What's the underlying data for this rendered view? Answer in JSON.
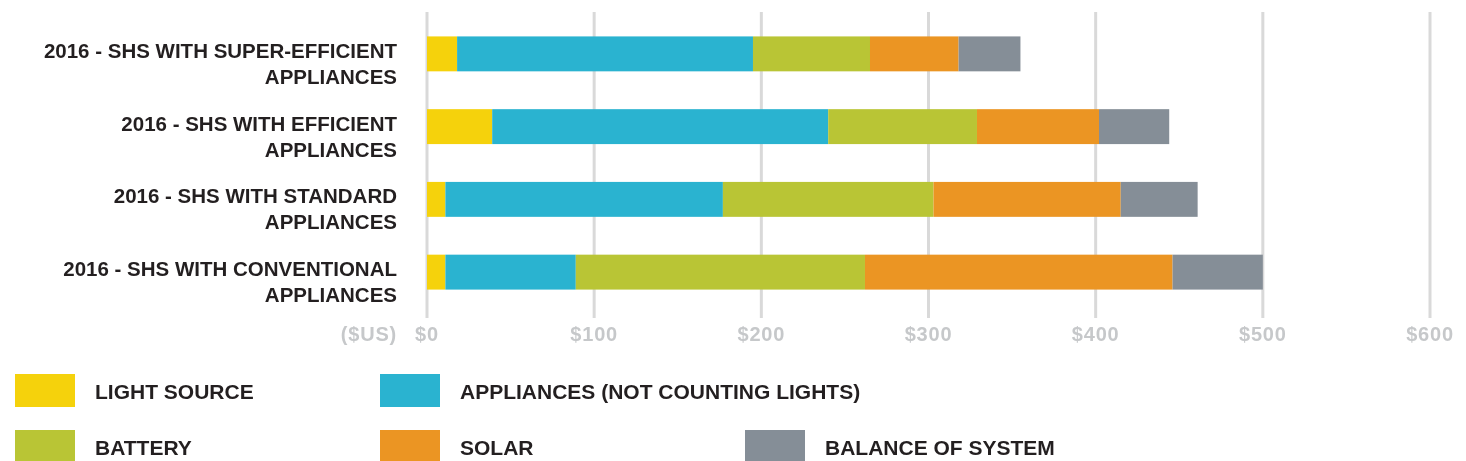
{
  "chart_data": {
    "type": "bar",
    "orientation": "horizontal",
    "stacked": true,
    "categories": [
      "2016 - SHS WITH SUPER-EFFICIENT APPLIANCES",
      "2016 - SHS WITH EFFICIENT APPLIANCES",
      "2016 - SHS WITH STANDARD APPLIANCES",
      "2016 - SHS WITH CONVENTIONAL APPLIANCES"
    ],
    "series": [
      {
        "name": "LIGHT SOURCE",
        "color": "#f5d20c",
        "values": [
          18,
          39,
          11,
          11
        ]
      },
      {
        "name": "APPLIANCES (NOT COUNTING LIGHTS)",
        "color": "#2ab3d0",
        "values": [
          177,
          201,
          166,
          78
        ]
      },
      {
        "name": "BATTERY",
        "color": "#b9c535",
        "values": [
          70,
          89,
          126,
          173
        ]
      },
      {
        "name": "SOLAR",
        "color": "#eb9523",
        "values": [
          53,
          73,
          112,
          184
        ]
      },
      {
        "name": "BALANCE OF SYSTEM",
        "color": "#858e97",
        "values": [
          37,
          42,
          46,
          54
        ]
      }
    ],
    "xlabel": "($US)",
    "xlim": [
      0,
      600
    ],
    "xticks": [
      {
        "value": 0,
        "label": "$0"
      },
      {
        "value": 100,
        "label": "$100"
      },
      {
        "value": 200,
        "label": "$200"
      },
      {
        "value": 300,
        "label": "$300"
      },
      {
        "value": 400,
        "label": "$400"
      },
      {
        "value": 500,
        "label": "$500"
      },
      {
        "value": 600,
        "label": "$600"
      }
    ],
    "grid": "x",
    "legend": "bottom"
  }
}
